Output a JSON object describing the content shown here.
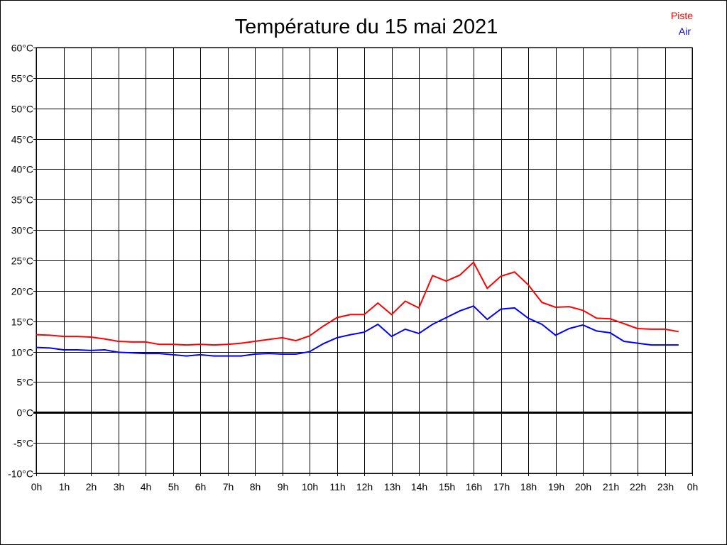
{
  "chart_data": {
    "type": "line",
    "title": "Température du 15 mai 2021",
    "xlabel": "",
    "ylabel": "",
    "xlim": [
      0,
      24
    ],
    "ylim": [
      -10,
      60
    ],
    "grid": true,
    "legend_position": "top-right",
    "x_tick_labels": [
      "0h",
      "1h",
      "2h",
      "3h",
      "4h",
      "5h",
      "6h",
      "7h",
      "8h",
      "9h",
      "10h",
      "11h",
      "12h",
      "13h",
      "14h",
      "15h",
      "16h",
      "17h",
      "18h",
      "19h",
      "20h",
      "21h",
      "22h",
      "23h",
      "0h"
    ],
    "y_tick_labels": [
      "60°C",
      "55°C",
      "50°C",
      "45°C",
      "40°C",
      "35°C",
      "30°C",
      "25°C",
      "20°C",
      "15°C",
      "10°C",
      "5°C",
      "0°C",
      "-5°C",
      "-10°C"
    ],
    "x": [
      0,
      0.5,
      1,
      1.5,
      2,
      2.5,
      3,
      3.5,
      4,
      4.5,
      5,
      5.5,
      6,
      6.5,
      7,
      7.5,
      8,
      8.5,
      9,
      9.5,
      10,
      10.5,
      11,
      11.5,
      12,
      12.5,
      13,
      13.5,
      14,
      14.5,
      15,
      15.5,
      16,
      16.5,
      17,
      17.5,
      18,
      18.5,
      19,
      19.5,
      20,
      20.5,
      21,
      21.5,
      22,
      22.5,
      23,
      23.5
    ],
    "series": [
      {
        "name": "Piste",
        "color": "#ff0000",
        "values": [
          12.8,
          12.7,
          12.5,
          12.5,
          12.4,
          12.1,
          11.7,
          11.6,
          11.6,
          11.2,
          11.2,
          11.1,
          11.2,
          11.1,
          11.2,
          11.4,
          11.7,
          12.0,
          12.3,
          11.8,
          12.6,
          14.2,
          15.6,
          16.1,
          16.1,
          18.0,
          16.1,
          18.3,
          17.2,
          22.5,
          21.6,
          22.6,
          24.7,
          20.4,
          22.4,
          23.1,
          21.0,
          18.1,
          17.3,
          17.4,
          16.8,
          15.5,
          15.4,
          14.6,
          13.8,
          13.7,
          13.7,
          13.3
        ]
      },
      {
        "name": "Air",
        "color": "#0000ff",
        "values": [
          10.7,
          10.6,
          10.3,
          10.3,
          10.2,
          10.3,
          9.9,
          9.8,
          9.7,
          9.7,
          9.5,
          9.3,
          9.5,
          9.3,
          9.3,
          9.3,
          9.6,
          9.7,
          9.6,
          9.6,
          10.0,
          11.3,
          12.3,
          12.8,
          13.2,
          14.5,
          12.5,
          13.7,
          13.0,
          14.5,
          15.6,
          16.7,
          17.5,
          15.3,
          17.0,
          17.2,
          15.5,
          14.5,
          12.7,
          13.8,
          14.4,
          13.4,
          13.1,
          11.7,
          11.4,
          11.1,
          11.1,
          11.1
        ]
      }
    ]
  }
}
